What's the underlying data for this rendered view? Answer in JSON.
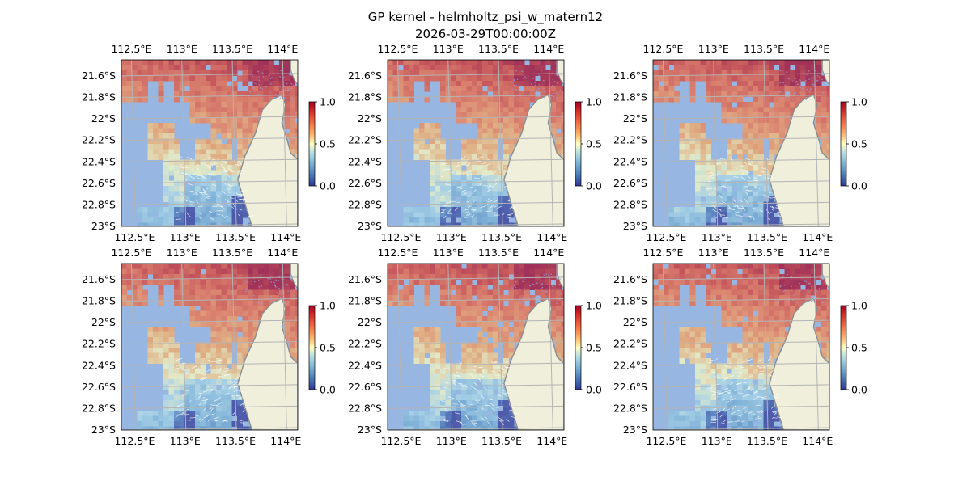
{
  "figure": {
    "title_line1": "GP kernel - helmholtz_psi_w_matern12",
    "title_line2": "2026-03-29T00:00:00Z"
  },
  "chart_data": {
    "type": "heatmap",
    "n_panels": 6,
    "grid": "2 rows x 3 columns",
    "map": {
      "lon_ticks": [
        "112.5°E",
        "113°E",
        "113.5°E",
        "114°E"
      ],
      "lon_tick_values": [
        112.5,
        113.0,
        113.5,
        114.0
      ],
      "lat_ticks": [
        "21.6°S",
        "21.8°S",
        "22°S",
        "22.2°S",
        "22.4°S",
        "22.6°S",
        "22.8°S",
        "23°S"
      ],
      "lat_tick_values": [
        -21.6,
        -21.8,
        -22.0,
        -22.2,
        -22.4,
        -22.6,
        -22.8,
        -23.0
      ],
      "lon_range": [
        112.4,
        114.15
      ],
      "lat_range": [
        -23.0,
        -21.45
      ],
      "gridlines": true,
      "labels_top_and_bottom": true
    },
    "colorbar": {
      "ticks": [
        "0.0",
        "0.5",
        "1.0"
      ],
      "range": [
        0.0,
        1.0
      ],
      "colormap": "RdYlBu_r"
    },
    "colors": {
      "ocean": "#97b6e1",
      "land": "#efefdb",
      "coast": "#8c8c8c",
      "gridline": "#b4b4b4",
      "vectors": "#ffffff",
      "cbar_low": "#313695",
      "cbar_mid": "#ffffbf",
      "cbar_high": "#a50026"
    }
  }
}
